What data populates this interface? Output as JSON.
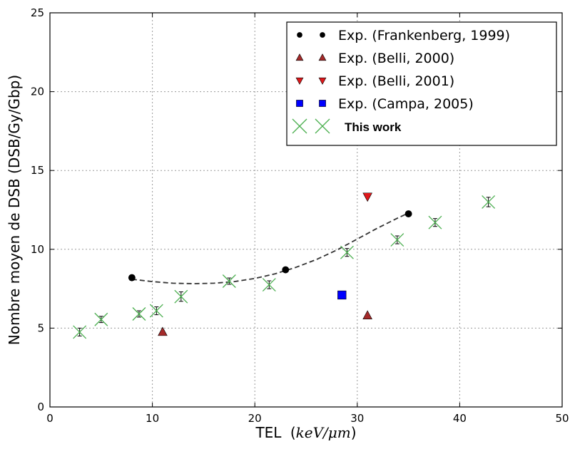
{
  "chart_data": {
    "type": "scatter",
    "xlabel": "TEL",
    "xlabel_unit": "keV/μm",
    "ylabel": "Nombre moyen de DSB (DSB/Gy/Gbp)",
    "xlim": [
      0,
      50
    ],
    "ylim": [
      0,
      25
    ],
    "xticks": [
      0,
      10,
      20,
      30,
      40,
      50
    ],
    "yticks": [
      0,
      5,
      10,
      15,
      20,
      25
    ],
    "grid": true,
    "legend_position": "top-right",
    "series": [
      {
        "name": "Exp. (Frankenberg, 1999)",
        "marker": "circle",
        "color": "#000000",
        "points": [
          [
            8,
            8.2
          ],
          [
            23,
            8.7
          ],
          [
            35,
            12.25
          ]
        ],
        "fit": [
          [
            8,
            8.1
          ],
          [
            10,
            7.95
          ],
          [
            12,
            7.85
          ],
          [
            14,
            7.82
          ],
          [
            16,
            7.85
          ],
          [
            18,
            7.95
          ],
          [
            20,
            8.15
          ],
          [
            22,
            8.45
          ],
          [
            24,
            8.85
          ],
          [
            26,
            9.35
          ],
          [
            28,
            9.95
          ],
          [
            30,
            10.65
          ],
          [
            32,
            11.35
          ],
          [
            34,
            12.0
          ],
          [
            35,
            12.3
          ]
        ]
      },
      {
        "name": "Exp. (Belli, 2000)",
        "marker": "triangle-up",
        "color": "#a52a2a",
        "points": [
          [
            11,
            4.75
          ],
          [
            31,
            5.8
          ]
        ]
      },
      {
        "name": "Exp. (Belli, 2001)",
        "marker": "triangle-down",
        "color": "#e0181b",
        "points": [
          [
            31,
            13.35
          ]
        ]
      },
      {
        "name": "Exp. (Campa, 2005)",
        "marker": "square",
        "color": "#0000ff",
        "points": [
          [
            28.5,
            7.1
          ]
        ]
      },
      {
        "name": "This work",
        "marker": "x",
        "color": "#4caf50",
        "points": [
          [
            2.9,
            4.75
          ],
          [
            5,
            5.55
          ],
          [
            8.7,
            5.9
          ],
          [
            10.4,
            6.1
          ],
          [
            12.8,
            7.0
          ],
          [
            17.5,
            7.98
          ],
          [
            21.4,
            7.75
          ],
          [
            29,
            9.8
          ],
          [
            33.9,
            10.6
          ],
          [
            37.6,
            11.7
          ],
          [
            42.8,
            13.0
          ]
        ],
        "errors": [
          0.25,
          0.2,
          0.2,
          0.25,
          0.3,
          0.2,
          0.25,
          0.25,
          0.25,
          0.25,
          0.3
        ]
      }
    ]
  }
}
